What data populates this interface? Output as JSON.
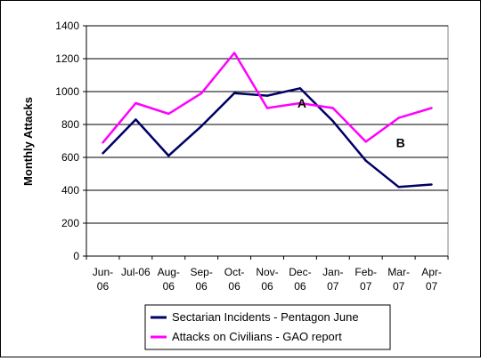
{
  "chart_data": {
    "type": "line",
    "title": "",
    "xlabel": "",
    "ylabel": "Monthly Attacks",
    "ylim": [
      0,
      1400
    ],
    "yticks": [
      0,
      200,
      400,
      600,
      800,
      1000,
      1200,
      1400
    ],
    "grid": "horizontal",
    "legend_position": "bottom-right",
    "categories": [
      [
        "Jun-",
        "06"
      ],
      [
        "Jul-06",
        ""
      ],
      [
        "Aug-",
        "06"
      ],
      [
        "Sep-",
        "06"
      ],
      [
        "Oct-",
        "06"
      ],
      [
        "Nov-",
        "06"
      ],
      [
        "Dec-",
        "06"
      ],
      [
        "Jan-",
        "07"
      ],
      [
        "Feb-",
        "07"
      ],
      [
        "Mar-",
        "07"
      ],
      [
        "Apr-",
        "07"
      ]
    ],
    "series": [
      {
        "name": "Sectarian Incidents - Pentagon June",
        "color": "#000066",
        "values": [
          625,
          830,
          610,
          790,
          990,
          975,
          1020,
          820,
          580,
          420,
          435
        ]
      },
      {
        "name": "Attacks on Civilians - GAO report",
        "color": "#ff00ff",
        "values": [
          690,
          930,
          865,
          990,
          1235,
          900,
          930,
          900,
          695,
          840,
          900
        ]
      }
    ],
    "annotations": [
      {
        "text": "A",
        "x_index": 6,
        "y": 930
      },
      {
        "text": "B",
        "x_index": 9,
        "y": 690
      }
    ]
  }
}
